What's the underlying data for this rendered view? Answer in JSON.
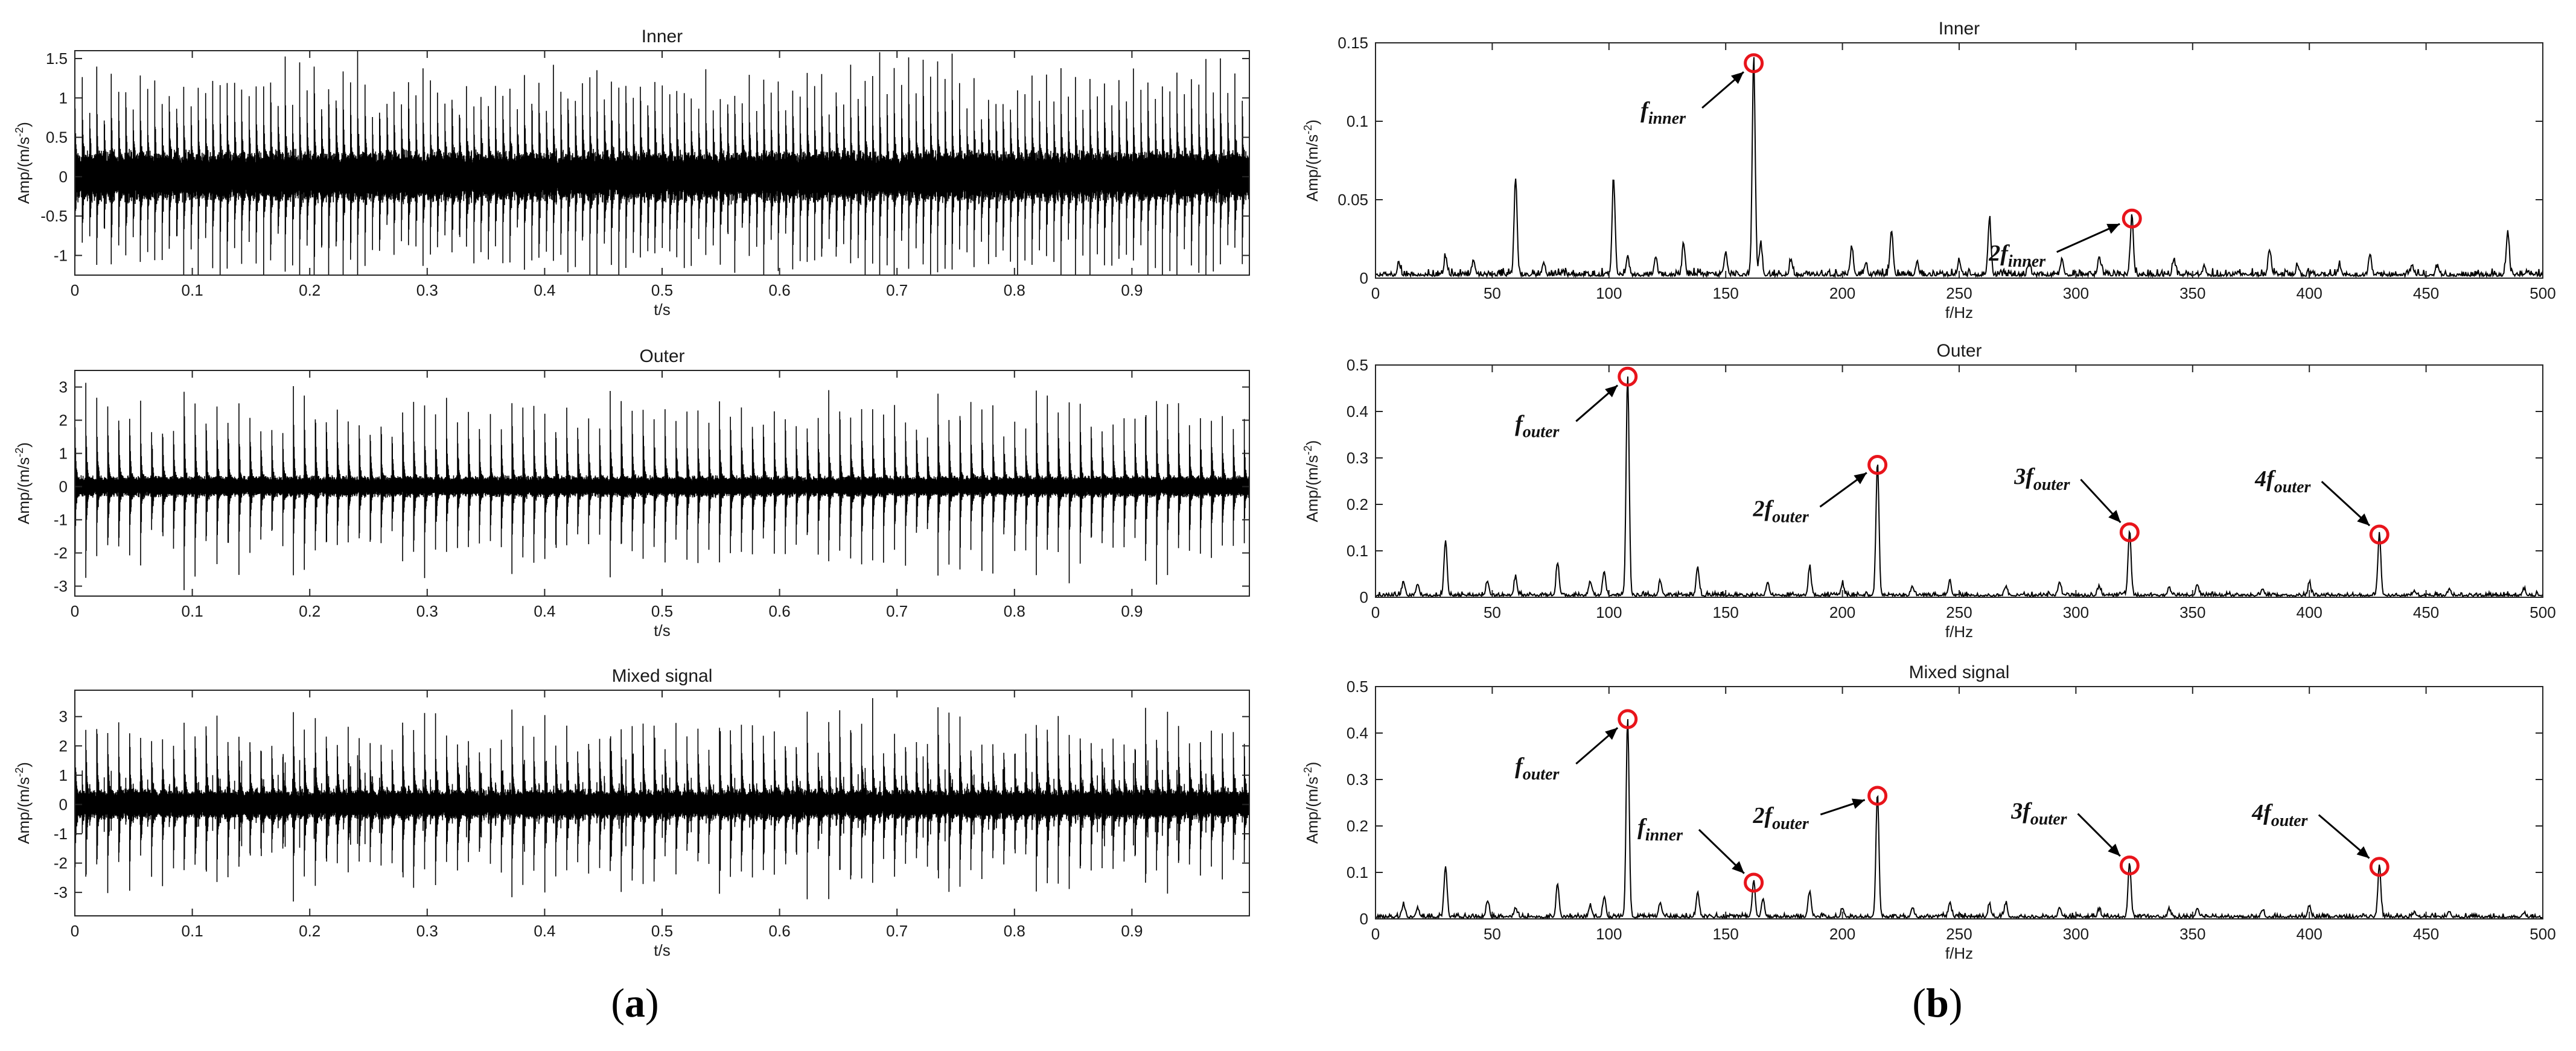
{
  "panel_labels": {
    "a": "a",
    "b": "b"
  },
  "chart_data": [
    {
      "id": "a1",
      "column": "a",
      "type": "line",
      "title": "Inner",
      "xlabel": "t/s",
      "ylabel": "Amp/(m/s",
      "ylabel_sup": "-2",
      "ylabel_tail": ")",
      "xlim": [
        0,
        1.0
      ],
      "ylim": [
        -1.25,
        1.6
      ],
      "xticks": [
        0,
        0.1,
        0.2,
        0.3,
        0.4,
        0.5,
        0.6,
        0.7,
        0.8,
        0.9
      ],
      "xtick_labels": [
        "0",
        "0.1",
        "0.2",
        "0.3",
        "0.4",
        "0.5",
        "0.6",
        "0.7",
        "0.8",
        "0.9"
      ],
      "yticks": [
        -1,
        -0.5,
        0,
        0.5,
        1,
        1.5
      ],
      "ytick_labels": [
        "-1",
        "-0.5",
        "0",
        "0.5",
        "1",
        "1.5"
      ],
      "signal": {
        "impulse_rate_hz": 162,
        "peak_amplitude": 1.55,
        "noise_amplitude": 0.35,
        "decay": 0.5,
        "seed": 11
      },
      "grid": false,
      "annotations": []
    },
    {
      "id": "a2",
      "column": "a",
      "type": "line",
      "title": "Outer",
      "xlabel": "t/s",
      "ylabel": "Amp/(m/s",
      "ylabel_sup": "-2",
      "ylabel_tail": ")",
      "xlim": [
        0,
        1.0
      ],
      "ylim": [
        -3.3,
        3.5
      ],
      "xticks": [
        0,
        0.1,
        0.2,
        0.3,
        0.4,
        0.5,
        0.6,
        0.7,
        0.8,
        0.9
      ],
      "xtick_labels": [
        "0",
        "0.1",
        "0.2",
        "0.3",
        "0.4",
        "0.5",
        "0.6",
        "0.7",
        "0.8",
        "0.9"
      ],
      "yticks": [
        -3,
        -2,
        -1,
        0,
        1,
        2,
        3
      ],
      "ytick_labels": [
        "-3",
        "-2",
        "-1",
        "0",
        "1",
        "2",
        "3"
      ],
      "signal": {
        "impulse_rate_hz": 107.5,
        "peak_amplitude": 3.2,
        "noise_amplitude": 0.35,
        "decay": 0.42,
        "seed": 23
      },
      "grid": false,
      "annotations": []
    },
    {
      "id": "a3",
      "column": "a",
      "type": "line",
      "title": "Mixed signal",
      "xlabel": "t/s",
      "ylabel": "Amp/(m/s",
      "ylabel_sup": "-2",
      "ylabel_tail": ")",
      "xlim": [
        0,
        1.0
      ],
      "ylim": [
        -3.8,
        3.9
      ],
      "xticks": [
        0,
        0.1,
        0.2,
        0.3,
        0.4,
        0.5,
        0.6,
        0.7,
        0.8,
        0.9
      ],
      "xtick_labels": [
        "0",
        "0.1",
        "0.2",
        "0.3",
        "0.4",
        "0.5",
        "0.6",
        "0.7",
        "0.8",
        "0.9"
      ],
      "yticks": [
        -3,
        -2,
        -1,
        0,
        1,
        2,
        3
      ],
      "ytick_labels": [
        "-3",
        "-2",
        "-1",
        "0",
        "1",
        "2",
        "3"
      ],
      "signal": {
        "impulse_rate_hz": 107.5,
        "second_rate_hz": 162,
        "peak_amplitude": 3.3,
        "noise_amplitude": 0.55,
        "decay": 0.45,
        "seed": 37
      },
      "grid": false,
      "annotations": []
    },
    {
      "id": "b1",
      "column": "b",
      "type": "line",
      "title": "Inner",
      "xlabel": "f/Hz",
      "ylabel": "Amp/(m/s",
      "ylabel_sup": "-2",
      "ylabel_tail": ")",
      "xlim": [
        0,
        500
      ],
      "ylim": [
        0,
        0.15
      ],
      "xticks": [
        0,
        50,
        100,
        150,
        200,
        250,
        300,
        350,
        400,
        450,
        500
      ],
      "xtick_labels": [
        "0",
        "50",
        "100",
        "150",
        "200",
        "250",
        "300",
        "350",
        "400",
        "450",
        "500"
      ],
      "yticks": [
        0,
        0.05,
        0.1,
        0.15
      ],
      "ytick_labels": [
        "0",
        "0.05",
        "0.1",
        "0.15"
      ],
      "peaks": [
        [
          10,
          0.008
        ],
        [
          30,
          0.012
        ],
        [
          42,
          0.01
        ],
        [
          60,
          0.062
        ],
        [
          72,
          0.008
        ],
        [
          102,
          0.061
        ],
        [
          108,
          0.012
        ],
        [
          120,
          0.012
        ],
        [
          132,
          0.02
        ],
        [
          150,
          0.015
        ],
        [
          162,
          0.137
        ],
        [
          165,
          0.02
        ],
        [
          178,
          0.01
        ],
        [
          204,
          0.016
        ],
        [
          210,
          0.008
        ],
        [
          221,
          0.029
        ],
        [
          232,
          0.008
        ],
        [
          250,
          0.01
        ],
        [
          263,
          0.036
        ],
        [
          280,
          0.008
        ],
        [
          294,
          0.01
        ],
        [
          310,
          0.012
        ],
        [
          324,
          0.038
        ],
        [
          342,
          0.01
        ],
        [
          355,
          0.006
        ],
        [
          383,
          0.016
        ],
        [
          395,
          0.006
        ],
        [
          413,
          0.006
        ],
        [
          426,
          0.013
        ],
        [
          444,
          0.006
        ],
        [
          455,
          0.006
        ],
        [
          485,
          0.028
        ]
      ],
      "noise_floor": 0.004,
      "seed": 5,
      "grid": false,
      "annotations": [
        {
          "x": 162,
          "y": 0.137,
          "base": "f",
          "sub": "inner"
        },
        {
          "x": 324,
          "y": 0.038,
          "base": "2f",
          "sub": "inner"
        }
      ]
    },
    {
      "id": "b2",
      "column": "b",
      "type": "line",
      "title": "Outer",
      "xlabel": "f/Hz",
      "ylabel": "Amp/(m/s",
      "ylabel_sup": "-2",
      "ylabel_tail": ")",
      "xlim": [
        0,
        500
      ],
      "ylim": [
        0,
        0.5
      ],
      "xticks": [
        0,
        50,
        100,
        150,
        200,
        250,
        300,
        350,
        400,
        450,
        500
      ],
      "xtick_labels": [
        "0",
        "50",
        "100",
        "150",
        "200",
        "250",
        "300",
        "350",
        "400",
        "450",
        "500"
      ],
      "yticks": [
        0,
        0.1,
        0.2,
        0.3,
        0.4,
        0.5
      ],
      "ytick_labels": [
        "0",
        "0.1",
        "0.2",
        "0.3",
        "0.4",
        "0.5"
      ],
      "peaks": [
        [
          12,
          0.03
        ],
        [
          18,
          0.025
        ],
        [
          30,
          0.12
        ],
        [
          48,
          0.03
        ],
        [
          60,
          0.04
        ],
        [
          78,
          0.07
        ],
        [
          92,
          0.03
        ],
        [
          98,
          0.05
        ],
        [
          108,
          0.475
        ],
        [
          122,
          0.03
        ],
        [
          138,
          0.06
        ],
        [
          168,
          0.03
        ],
        [
          186,
          0.06
        ],
        [
          200,
          0.025
        ],
        [
          215,
          0.285
        ],
        [
          230,
          0.02
        ],
        [
          246,
          0.03
        ],
        [
          270,
          0.02
        ],
        [
          293,
          0.03
        ],
        [
          310,
          0.02
        ],
        [
          323,
          0.14
        ],
        [
          340,
          0.015
        ],
        [
          352,
          0.025
        ],
        [
          380,
          0.015
        ],
        [
          400,
          0.025
        ],
        [
          430,
          0.135
        ],
        [
          445,
          0.01
        ],
        [
          460,
          0.015
        ],
        [
          492,
          0.012
        ]
      ],
      "noise_floor": 0.008,
      "seed": 9,
      "grid": false,
      "annotations": [
        {
          "x": 108,
          "y": 0.475,
          "base": "f",
          "sub": "outer"
        },
        {
          "x": 215,
          "y": 0.285,
          "base": "2f",
          "sub": "outer"
        },
        {
          "x": 323,
          "y": 0.14,
          "base": "3f",
          "sub": "outer"
        },
        {
          "x": 430,
          "y": 0.135,
          "base": "4f",
          "sub": "outer"
        }
      ]
    },
    {
      "id": "b3",
      "column": "b",
      "type": "line",
      "title": "Mixed signal",
      "xlabel": "f/Hz",
      "ylabel": "Amp/(m/s",
      "ylabel_sup": "-2",
      "ylabel_tail": ")",
      "xlim": [
        0,
        500
      ],
      "ylim": [
        0,
        0.5
      ],
      "xticks": [
        0,
        50,
        100,
        150,
        200,
        250,
        300,
        350,
        400,
        450,
        500
      ],
      "xtick_labels": [
        "0",
        "50",
        "100",
        "150",
        "200",
        "250",
        "300",
        "350",
        "400",
        "450",
        "500"
      ],
      "yticks": [
        0,
        0.1,
        0.2,
        0.3,
        0.4,
        0.5
      ],
      "ytick_labels": [
        "0",
        "0.1",
        "0.2",
        "0.3",
        "0.4",
        "0.5"
      ],
      "peaks": [
        [
          12,
          0.025
        ],
        [
          18,
          0.02
        ],
        [
          30,
          0.11
        ],
        [
          48,
          0.035
        ],
        [
          60,
          0.02
        ],
        [
          78,
          0.07
        ],
        [
          92,
          0.025
        ],
        [
          98,
          0.045
        ],
        [
          108,
          0.43
        ],
        [
          122,
          0.03
        ],
        [
          138,
          0.055
        ],
        [
          162,
          0.078
        ],
        [
          166,
          0.04
        ],
        [
          186,
          0.055
        ],
        [
          200,
          0.02
        ],
        [
          215,
          0.265
        ],
        [
          230,
          0.02
        ],
        [
          246,
          0.03
        ],
        [
          263,
          0.025
        ],
        [
          270,
          0.03
        ],
        [
          293,
          0.02
        ],
        [
          310,
          0.015
        ],
        [
          323,
          0.115
        ],
        [
          340,
          0.015
        ],
        [
          352,
          0.02
        ],
        [
          380,
          0.015
        ],
        [
          400,
          0.025
        ],
        [
          430,
          0.112
        ],
        [
          445,
          0.01
        ],
        [
          460,
          0.012
        ],
        [
          492,
          0.01
        ]
      ],
      "noise_floor": 0.008,
      "seed": 13,
      "grid": false,
      "annotations": [
        {
          "x": 108,
          "y": 0.43,
          "base": "f",
          "sub": "outer"
        },
        {
          "x": 162,
          "y": 0.078,
          "base": "f",
          "sub": "inner"
        },
        {
          "x": 215,
          "y": 0.265,
          "base": "2f",
          "sub": "outer"
        },
        {
          "x": 323,
          "y": 0.115,
          "base": "3f",
          "sub": "outer"
        },
        {
          "x": 430,
          "y": 0.112,
          "base": "4f",
          "sub": "outer"
        }
      ]
    }
  ]
}
